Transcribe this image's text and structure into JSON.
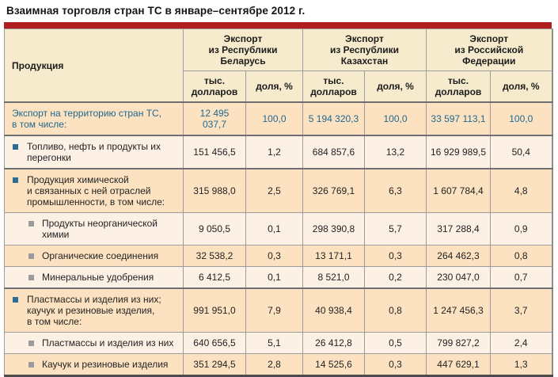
{
  "title": "Взаимная торговля стран ТС в январе–сентябре 2012 г.",
  "colors": {
    "accent_red": "#b01d20",
    "header_bg": "#f6ebcd",
    "row_peach": "#fce2c0",
    "row_light": "#fdf0e4",
    "total_blue": "#20688f",
    "bullet_blue": "#2d6d95",
    "bullet_gray": "#9b9b9b"
  },
  "table": {
    "product_header": "Продукция",
    "group_headers": [
      "Экспорт\nиз Республики\nБеларусь",
      "Экспорт\nиз Республики\nКазахстан",
      "Экспорт\nиз Российской\nФедерации"
    ],
    "value_header": "тыс.\nдолларов",
    "share_header": "доля, %",
    "rows": [
      {
        "label": "Экспорт на территорию стран ТС,\nв том числе:",
        "level": 0,
        "values": [
          "12 495 037,7",
          "100,0",
          "5 194 320,3",
          "100,0",
          "33 597 113,1",
          "100,0"
        ]
      },
      {
        "label": "Топливо, нефть и продукты их\nперегонки",
        "level": 1,
        "values": [
          "151 456,5",
          "1,2",
          "684 857,6",
          "13,2",
          "16 929 989,5",
          "50,4"
        ]
      },
      {
        "label": "Продукция химической\nи связанных с ней отраслей\nпромышленности, в том числе:",
        "level": 1,
        "values": [
          "315 988,0",
          "2,5",
          "326 769,1",
          "6,3",
          "1 607 784,4",
          "4,8"
        ]
      },
      {
        "label": "Продукты неорганической\nхимии",
        "level": 2,
        "values": [
          "9 050,5",
          "0,1",
          "298 390,8",
          "5,7",
          "317 288,4",
          "0,9"
        ]
      },
      {
        "label": "Органические соединения",
        "level": 2,
        "values": [
          "32 538,2",
          "0,3",
          "13 171,1",
          "0,3",
          "264 462,3",
          "0,8"
        ]
      },
      {
        "label": "Минеральные удобрения",
        "level": 2,
        "values": [
          "6 412,5",
          "0,1",
          "8 521,0",
          "0,2",
          "230 047,0",
          "0,7"
        ]
      },
      {
        "label": "Пластмассы и изделия из них;\nкаучук и резиновые изделия,\nв том числе:",
        "level": 1,
        "values": [
          "991 951,0",
          "7,9",
          "40 938,4",
          "0,8",
          "1 247 456,3",
          "3,7"
        ]
      },
      {
        "label": "Пластмассы и изделия из них",
        "level": 2,
        "values": [
          "640 656,5",
          "5,1",
          "26 412,8",
          "0,5",
          "799 827,2",
          "2,4"
        ]
      },
      {
        "label": "Каучук и резиновые изделия",
        "level": 2,
        "values": [
          "351 294,5",
          "2,8",
          "14 525,6",
          "0,3",
          "447 629,1",
          "1,3"
        ]
      }
    ]
  }
}
